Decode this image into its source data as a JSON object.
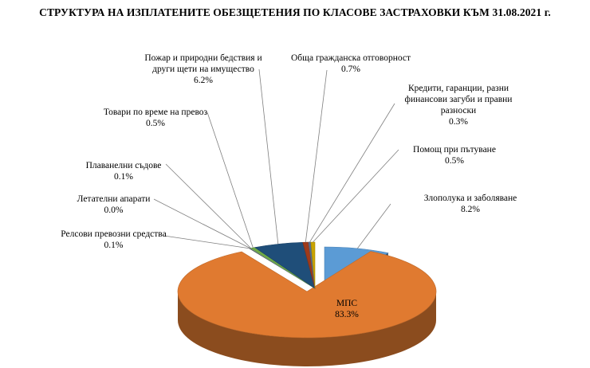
{
  "chart_data": {
    "type": "pie",
    "title": "СТРУКТУРА НА ИЗПЛАТЕНИТЕ  ОБЕЗЩЕТЕНИЯ ПО КЛАСОВЕ ЗАСТРАХОВКИ КЪМ 31.08.2021 г.",
    "slices": [
      {
        "label": "Злополука и заболяване",
        "display": "8.2%",
        "value": 8.2,
        "color": "#5b9bd5",
        "label_lines": [
          "Злополука и заболяване"
        ]
      },
      {
        "label": "МПС",
        "display": "83.3%",
        "value": 83.3,
        "color": "#e07a30",
        "label_lines": [
          "МПС"
        ]
      },
      {
        "label": "Релсови превозни средства",
        "display": "0.1%",
        "value": 0.1,
        "color": "#4a4a4a",
        "label_lines": [
          "Релсови превозни средства"
        ]
      },
      {
        "label": "Летателни апарати",
        "display": "0.0%",
        "value": 0.05,
        "color": "#2e75b6",
        "label_lines": [
          "Летателни апарати"
        ]
      },
      {
        "label": "Плавателни съдове",
        "display": "0.1%",
        "value": 0.1,
        "color": "#a9d18e",
        "label_lines": [
          "Плаванелни  съдове"
        ]
      },
      {
        "label": "Товари по време на превоз",
        "display": "0.5%",
        "value": 0.5,
        "color": "#70ad47",
        "label_lines": [
          "Товари по време на превоз"
        ]
      },
      {
        "label": "Пожар и природни бедствия и други щети на имущество",
        "display": "6.2%",
        "value": 6.2,
        "color": "#1f4e79",
        "label_lines": [
          "Пожар и природни бедствия и",
          "други щети на имущество"
        ]
      },
      {
        "label": "Обща гражданска отговорност",
        "display": "0.7%",
        "value": 0.7,
        "color": "#9e3a1a",
        "label_lines": [
          "Обща гражданска отговорност"
        ]
      },
      {
        "label": "Кредити, гаранции, разни финансови загуби и правни разноски",
        "display": "0.3%",
        "value": 0.3,
        "color": "#5a6f8f",
        "label_lines": [
          "Кредити, гаранции,  разни",
          "финансови  загуби и правни",
          "разноски"
        ]
      },
      {
        "label": "Помощ при пътуване",
        "display": "0.5%",
        "value": 0.5,
        "color": "#c9a300",
        "label_lines": [
          "Помощ при пътуване"
        ]
      }
    ]
  }
}
